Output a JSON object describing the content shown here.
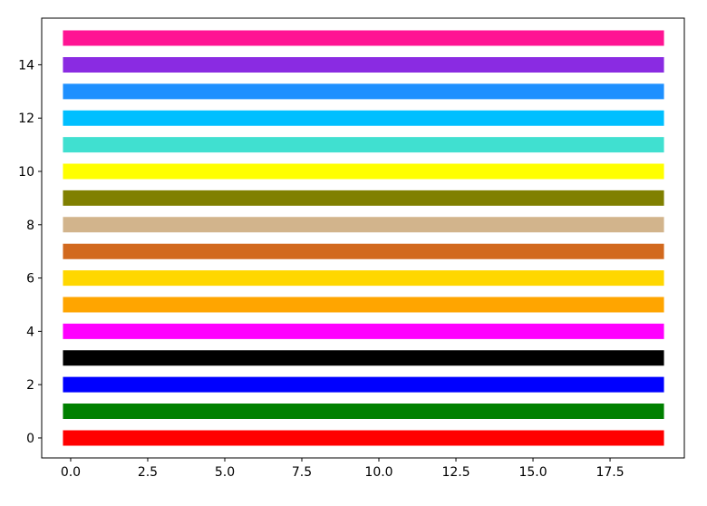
{
  "chart_data": {
    "type": "line",
    "title": "",
    "xlabel": "",
    "ylabel": "",
    "xlim": [
      -0.94,
      19.91
    ],
    "ylim": [
      -0.75,
      15.75
    ],
    "grid": false,
    "xticks": [
      "0.0",
      "2.5",
      "5.0",
      "7.5",
      "10.0",
      "12.5",
      "15.0",
      "17.5"
    ],
    "xtick_values": [
      0,
      2.5,
      5,
      7.5,
      10,
      12.5,
      15,
      17.5
    ],
    "yticks": [
      "0",
      "2",
      "4",
      "6",
      "8",
      "10",
      "12",
      "14"
    ],
    "ytick_values": [
      0,
      2,
      4,
      6,
      8,
      10,
      12,
      14
    ],
    "x_range": [
      0,
      19
    ],
    "series": [
      {
        "y": 0,
        "color": "#ff0000"
      },
      {
        "y": 1,
        "color": "#008000"
      },
      {
        "y": 2,
        "color": "#0000ff"
      },
      {
        "y": 3,
        "color": "#000000"
      },
      {
        "y": 4,
        "color": "#ff00ff"
      },
      {
        "y": 5,
        "color": "#ffa500"
      },
      {
        "y": 6,
        "color": "#ffd700"
      },
      {
        "y": 7,
        "color": "#d2691e"
      },
      {
        "y": 8,
        "color": "#d2b48c"
      },
      {
        "y": 9,
        "color": "#808000"
      },
      {
        "y": 10,
        "color": "#ffff00"
      },
      {
        "y": 11,
        "color": "#40e0d0"
      },
      {
        "y": 12,
        "color": "#00bfff"
      },
      {
        "y": 13,
        "color": "#1e90ff"
      },
      {
        "y": 14,
        "color": "#8a2be2"
      },
      {
        "y": 15,
        "color": "#ff1493"
      }
    ]
  }
}
